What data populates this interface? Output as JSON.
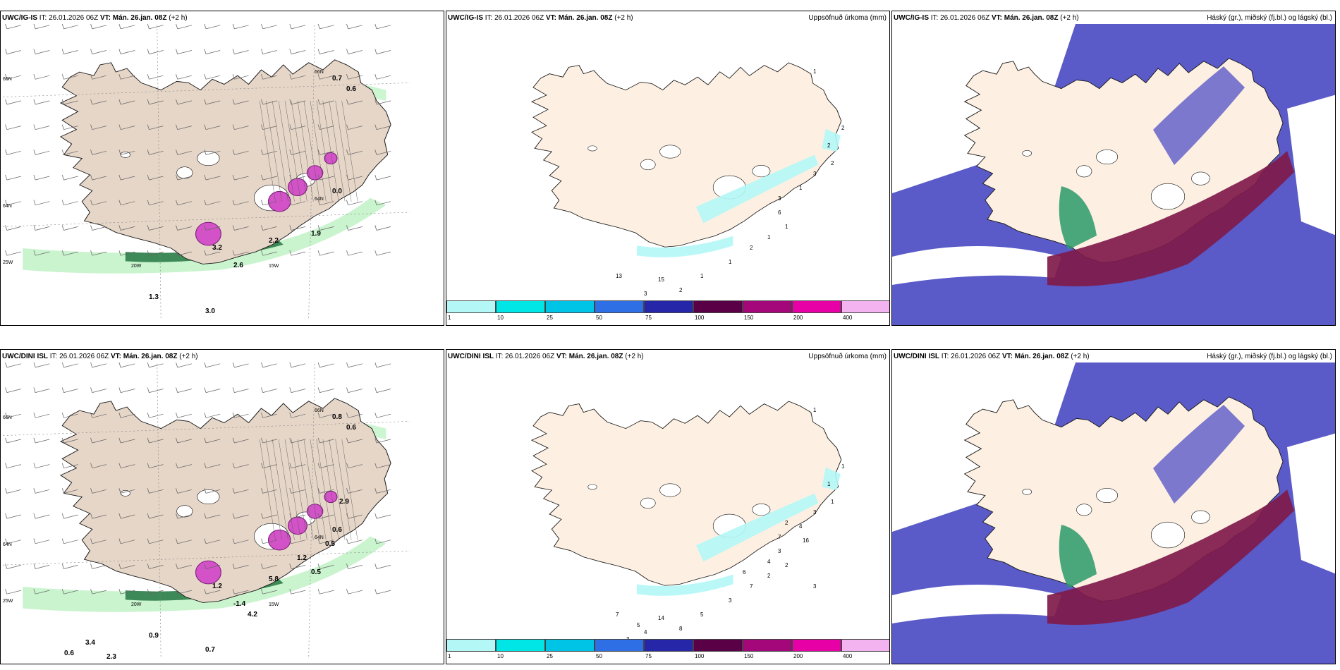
{
  "panels": [
    {
      "id": "p1",
      "model": "UWC/IG-IS",
      "it_prefix": "IT:",
      "it_value": "26.01.2026 06Z",
      "vt_label": "VT: Mán. 26.jan. 08Z",
      "lead": "(+2 h)",
      "right_title": "",
      "axis_labels": [
        "66N",
        "64N",
        "25W",
        "20W",
        "15W",
        "66N",
        "64N"
      ],
      "value_labels": [
        "0.7",
        "0.6",
        "0.0",
        "1.9",
        "3.0",
        "1.3",
        "2.6",
        "2.2",
        "3.2"
      ]
    },
    {
      "id": "p2",
      "model": "UWC/IG-IS",
      "it_prefix": "IT:",
      "it_value": "26.01.2026 06Z",
      "vt_label": "VT: Mán. 26.jan. 08Z",
      "lead": "(+2 h)",
      "right_title": "Uppsöfnuð úrkoma (mm)",
      "value_labels": [
        "1",
        "2",
        "2",
        "2",
        "3",
        "1",
        "6",
        "1",
        "1",
        "2",
        "1",
        "1",
        "2",
        "15",
        "3",
        "1",
        "13",
        "3"
      ]
    },
    {
      "id": "p3",
      "model": "UWC/IG-IS",
      "it_prefix": "IT:",
      "it_value": "26.01.2026 06Z",
      "vt_label": "VT: Mán. 26.jan. 08Z",
      "lead": "(+2 h)",
      "right_title": "Háský (gr.), miðský (fj.bl.) og lágský (bl.)"
    },
    {
      "id": "p4",
      "model": "UWC/DINI ISL",
      "it_prefix": "IT:",
      "it_value": "26.01.2026 06Z",
      "vt_label": "VT: Mán. 26.jan. 08Z",
      "lead": "(+2 h)",
      "right_title": "",
      "axis_labels": [
        "66N",
        "64N",
        "25W",
        "20W",
        "15W",
        "66N",
        "64N"
      ],
      "value_labels": [
        "0.8",
        "0.6",
        "0.6",
        "0.5",
        "0.7",
        "0.9",
        "-1.4",
        "5.8",
        "1.2",
        "1.2",
        "0.5",
        "4.2",
        "2.9",
        "3.4",
        "0.6",
        "2.3"
      ]
    },
    {
      "id": "p5",
      "model": "UWC/DINI ISL",
      "it_prefix": "IT:",
      "it_value": "26.01.2026 06Z",
      "vt_label": "VT: Mán. 26.jan. 08Z",
      "lead": "(+2 h)",
      "right_title": "Uppsöfnuð úrkoma (mm)",
      "value_labels": [
        "1",
        "1",
        "1",
        "1",
        "3",
        "4",
        "3",
        "2",
        "2",
        "7",
        "3",
        "5",
        "8",
        "14",
        "4",
        "5",
        "7",
        "7",
        "2",
        "16",
        "4",
        "6",
        "5",
        "3",
        "3"
      ]
    },
    {
      "id": "p6",
      "model": "UWC/DINI ISL",
      "it_prefix": "IT:",
      "it_value": "26.01.2026 06Z",
      "vt_label": "VT: Mán. 26.jan. 08Z",
      "lead": "(+2 h)",
      "right_title": "Háský (gr.), miðský (fj.bl.) og lágský (bl.)"
    }
  ],
  "precip_legend": {
    "labels": [
      "1",
      "10",
      "25",
      "50",
      "75",
      "100",
      "150",
      "200",
      "400"
    ],
    "colors": [
      "#b3f7f7",
      "#00e5e5",
      "#00c4e5",
      "#2f6fe6",
      "#2626a8",
      "#5a0047",
      "#a3077a",
      "#e600a6",
      "#f2b3f0"
    ]
  },
  "colors": {
    "land": "#fdf0e2",
    "land_wind": "#e6d6c8",
    "coast": "#1a1a1a",
    "high_cloud": "#2a9a6a",
    "mid_cloud": "#7f1a4a",
    "low_cloud": "#5a5ac8",
    "precip_light": "#bff2c6",
    "precip_dark": "#2e7d4a",
    "snow": "#d452c8"
  }
}
